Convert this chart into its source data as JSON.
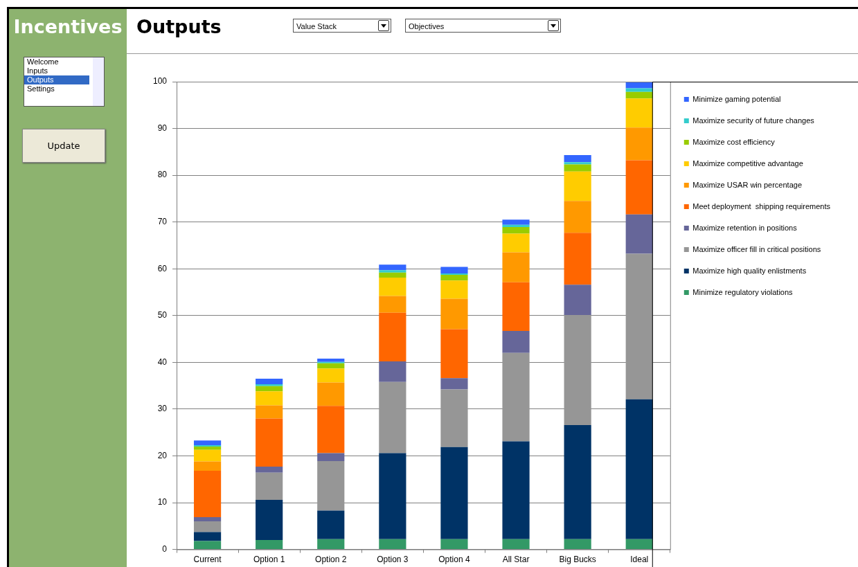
{
  "chart_data": {
    "type": "bar",
    "title": "Outputs",
    "annotations": [
      "Incentives",
      "Value Stack",
      "Objectives",
      "Welcome",
      "Inputs",
      "Outputs",
      "Settings",
      "Update"
    ],
    "categories": [
      "Current",
      "Option 1",
      "Option 2",
      "Option 3",
      "Option 4",
      "All Star",
      "Big Bucks",
      "Ideal"
    ],
    "stacked": true,
    "series": [
      {
        "name": "Minimize regulatory violations",
        "color": "#339966",
        "values": [
          1.8,
          2.0,
          2.2,
          2.2,
          2.2,
          2.2,
          2.2,
          2.2
        ]
      },
      {
        "name": "Maximize high quality enlistments",
        "color": "#003366",
        "values": [
          1.9,
          8.6,
          6.1,
          18.4,
          19.7,
          20.9,
          24.4,
          29.9
        ]
      },
      {
        "name": "Maximize officer fill in critical positions",
        "color": "#969696",
        "values": [
          2.3,
          5.8,
          10.6,
          15.2,
          12.3,
          18.9,
          23.5,
          31.1
        ]
      },
      {
        "name": "Maximize retention in positions",
        "color": "#666699",
        "values": [
          0.9,
          1.3,
          1.7,
          4.4,
          2.4,
          4.7,
          6.5,
          8.4
        ]
      },
      {
        "name": "Meet deployment  shipping requirements",
        "color": "#ff6600",
        "values": [
          9.9,
          10.3,
          10.1,
          10.4,
          10.5,
          10.4,
          11.1,
          11.6
        ]
      },
      {
        "name": "Maximize USAR win percentage",
        "color": "#ff9900",
        "values": [
          2.0,
          2.8,
          5.0,
          3.6,
          6.5,
          6.4,
          6.8,
          7.0
        ]
      },
      {
        "name": "Maximize competitive advantage",
        "color": "#ffcc00",
        "values": [
          2.5,
          3.0,
          3.0,
          3.9,
          3.9,
          4.0,
          6.3,
          6.2
        ]
      },
      {
        "name": "Maximize cost efficiency",
        "color": "#99cc00",
        "values": [
          0.7,
          1.1,
          1.1,
          1.1,
          1.2,
          1.4,
          1.5,
          1.4
        ]
      },
      {
        "name": "Maximize security of future changes",
        "color": "#33cccc",
        "values": [
          0.3,
          0.4,
          0.3,
          0.5,
          0.3,
          0.5,
          0.5,
          0.8
        ]
      },
      {
        "name": "Minimize gaming potential",
        "color": "#3366ff",
        "values": [
          1.0,
          1.2,
          0.7,
          1.2,
          1.4,
          1.1,
          1.5,
          1.4
        ]
      }
    ],
    "ylim": [
      0,
      100
    ],
    "yticks": [
      0,
      10,
      20,
      30,
      40,
      50,
      60,
      70,
      80,
      90,
      100
    ],
    "grid": "y",
    "legend": "right"
  }
}
